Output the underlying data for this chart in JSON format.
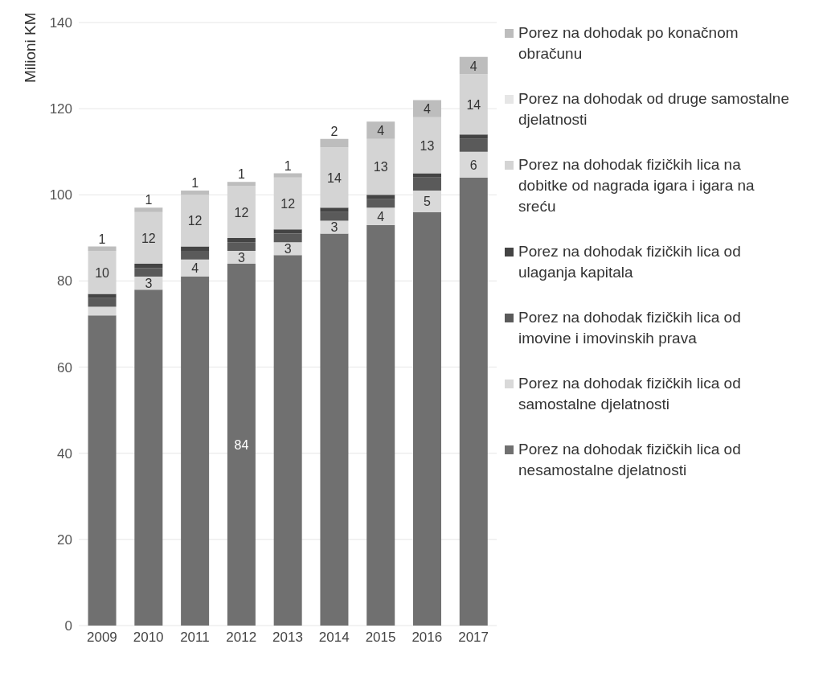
{
  "chart_data": {
    "type": "bar",
    "stacked": true,
    "ylabel": "Milioni KM",
    "categories": [
      "2009",
      "2010",
      "2011",
      "2012",
      "2013",
      "2014",
      "2015",
      "2016",
      "2017"
    ],
    "ylim": [
      0,
      140
    ],
    "yticks": [
      0,
      20,
      40,
      60,
      80,
      100,
      120,
      140
    ],
    "grid": "y",
    "legend": "right",
    "series": [
      {
        "name": "Porez na dohodak fizičkih lica od nesamostalne djelatnosti",
        "color": "#707070",
        "values": [
          72,
          78,
          81,
          84,
          86,
          91,
          93,
          96,
          104
        ],
        "value_labels": [
          null,
          null,
          null,
          "84",
          null,
          null,
          null,
          null,
          null
        ]
      },
      {
        "name": "Porez na dohodak fizičkih lica od samostalne djelatnosti",
        "color": "#d9d9d9",
        "values": [
          2,
          3,
          4,
          3,
          3,
          3,
          4,
          5,
          6
        ],
        "value_labels": [
          null,
          "3",
          "4",
          "3",
          "3",
          "3",
          "4",
          "5",
          "6"
        ]
      },
      {
        "name": "Porez na dohodak fizičkih lica od imovine i imovinskih prava",
        "color": "#5a5a5a",
        "values": [
          2,
          2,
          2,
          2,
          2,
          2,
          2,
          3,
          3
        ],
        "value_labels": [
          null,
          null,
          null,
          null,
          null,
          null,
          null,
          null,
          null
        ]
      },
      {
        "name": "Porez na dohodak fizičkih lica od ulaganja kapitala",
        "color": "#444444",
        "values": [
          1,
          1,
          1,
          1,
          1,
          1,
          1,
          1,
          1
        ],
        "value_labels": [
          null,
          null,
          null,
          null,
          null,
          null,
          null,
          null,
          null
        ]
      },
      {
        "name": "Porez na dohodak fizičkih lica na dobitke od nagrada igara i igara na sreću",
        "color": "#d4d4d4",
        "values": [
          10,
          12,
          12,
          12,
          12,
          14,
          13,
          13,
          14
        ],
        "value_labels": [
          "10",
          "12",
          "12",
          "12",
          "12",
          "14",
          "13",
          "13",
          "14"
        ]
      },
      {
        "name": "Porez na dohodak od druge samostalne djelatnosti",
        "color": "#e6e6e6",
        "values": [
          null,
          null,
          null,
          null,
          null,
          null,
          null,
          null,
          null
        ]
      },
      {
        "name": "Porez na dohodak po konačnom obračunu",
        "color": "#bdbdbd",
        "values": [
          1,
          1,
          1,
          1,
          1,
          2,
          4,
          4,
          4
        ],
        "value_labels": [
          "1",
          "1",
          "1",
          "1",
          "1",
          "2",
          "4",
          "4",
          "4"
        ]
      }
    ]
  }
}
